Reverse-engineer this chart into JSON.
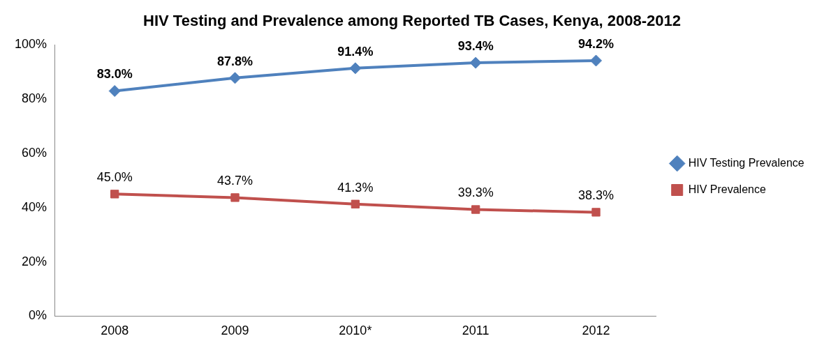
{
  "chart_data": {
    "type": "line",
    "title": "HIV Testing and Prevalence among Reported TB Cases, Kenya, 2008-2012",
    "categories": [
      "2008",
      "2009",
      "2010*",
      "2011",
      "2012"
    ],
    "series": [
      {
        "name": "HIV Testing Prevalence",
        "color": "#4f81bd",
        "marker": "diamond",
        "values": [
          83.0,
          87.8,
          91.4,
          93.4,
          94.2
        ],
        "value_labels": [
          "83.0%",
          "87.8%",
          "91.4%",
          "93.4%",
          "94.2%"
        ]
      },
      {
        "name": "HIV Prevalence",
        "color": "#c0504d",
        "marker": "square",
        "values": [
          45.0,
          43.7,
          41.3,
          39.3,
          38.3
        ],
        "value_labels": [
          "45.0%",
          "43.7%",
          "41.3%",
          "39.3%",
          "38.3%"
        ]
      }
    ],
    "ylim": [
      0,
      100
    ],
    "yticks": [
      {
        "value": 0,
        "label": "0%"
      },
      {
        "value": 20,
        "label": "20%"
      },
      {
        "value": 40,
        "label": "40%"
      },
      {
        "value": 60,
        "label": "60%"
      },
      {
        "value": 80,
        "label": "80%"
      },
      {
        "value": 100,
        "label": "100%"
      }
    ],
    "grid": false,
    "legend": "right",
    "line_style": "solid"
  }
}
